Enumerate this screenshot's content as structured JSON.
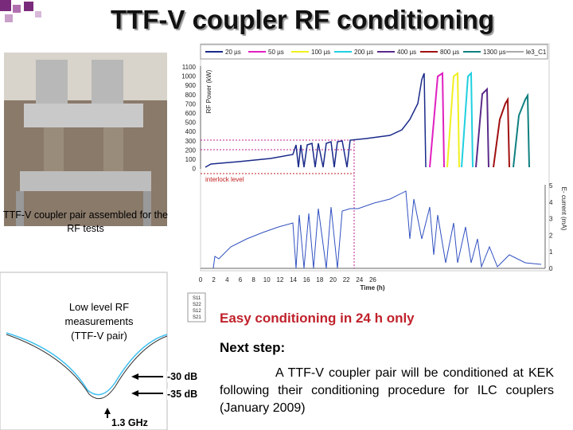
{
  "header": {
    "title": "TTF-V coupler RF conditioning"
  },
  "photo": {
    "caption": "TTF-V coupler pair assembled for the RF tests"
  },
  "plot": {
    "legend": [
      "20 µs",
      "50 µs",
      "100 µs",
      "200 µs",
      "400 µs",
      "800 µs",
      "1300 µs",
      "le3_C1"
    ],
    "y_label": "RF Power (kW)",
    "y_ticks": [
      "1100",
      "1000",
      "900",
      "800",
      "700",
      "600",
      "500",
      "400",
      "300",
      "200",
      "100",
      "0"
    ],
    "y2_label": "E- current (mA)",
    "y2_ticks": [
      "5",
      "4",
      "3",
      "2",
      "1",
      "0"
    ],
    "x_label": "Time (h)",
    "x_ticks": [
      "0",
      "2",
      "4",
      "6",
      "8",
      "10",
      "12",
      "14",
      "16",
      "18",
      "20",
      "22",
      "24",
      "26"
    ],
    "annotation": "interlock level"
  },
  "sparam": {
    "title": "Low level RF measurements",
    "subtitle": "(TTF-V pair)",
    "legend": [
      "S11",
      "S22",
      "S12",
      "S21"
    ],
    "markers": [
      "-30 dB",
      "-35 dB"
    ],
    "frequency": "1.3 GHz"
  },
  "notes": {
    "highlight": "Easy conditioning in 24 h only",
    "heading": "Next step:",
    "body": "A TTF-V coupler pair will be conditioned at KEK following their conditioning procedure for ILC couplers (January 2009)"
  }
}
